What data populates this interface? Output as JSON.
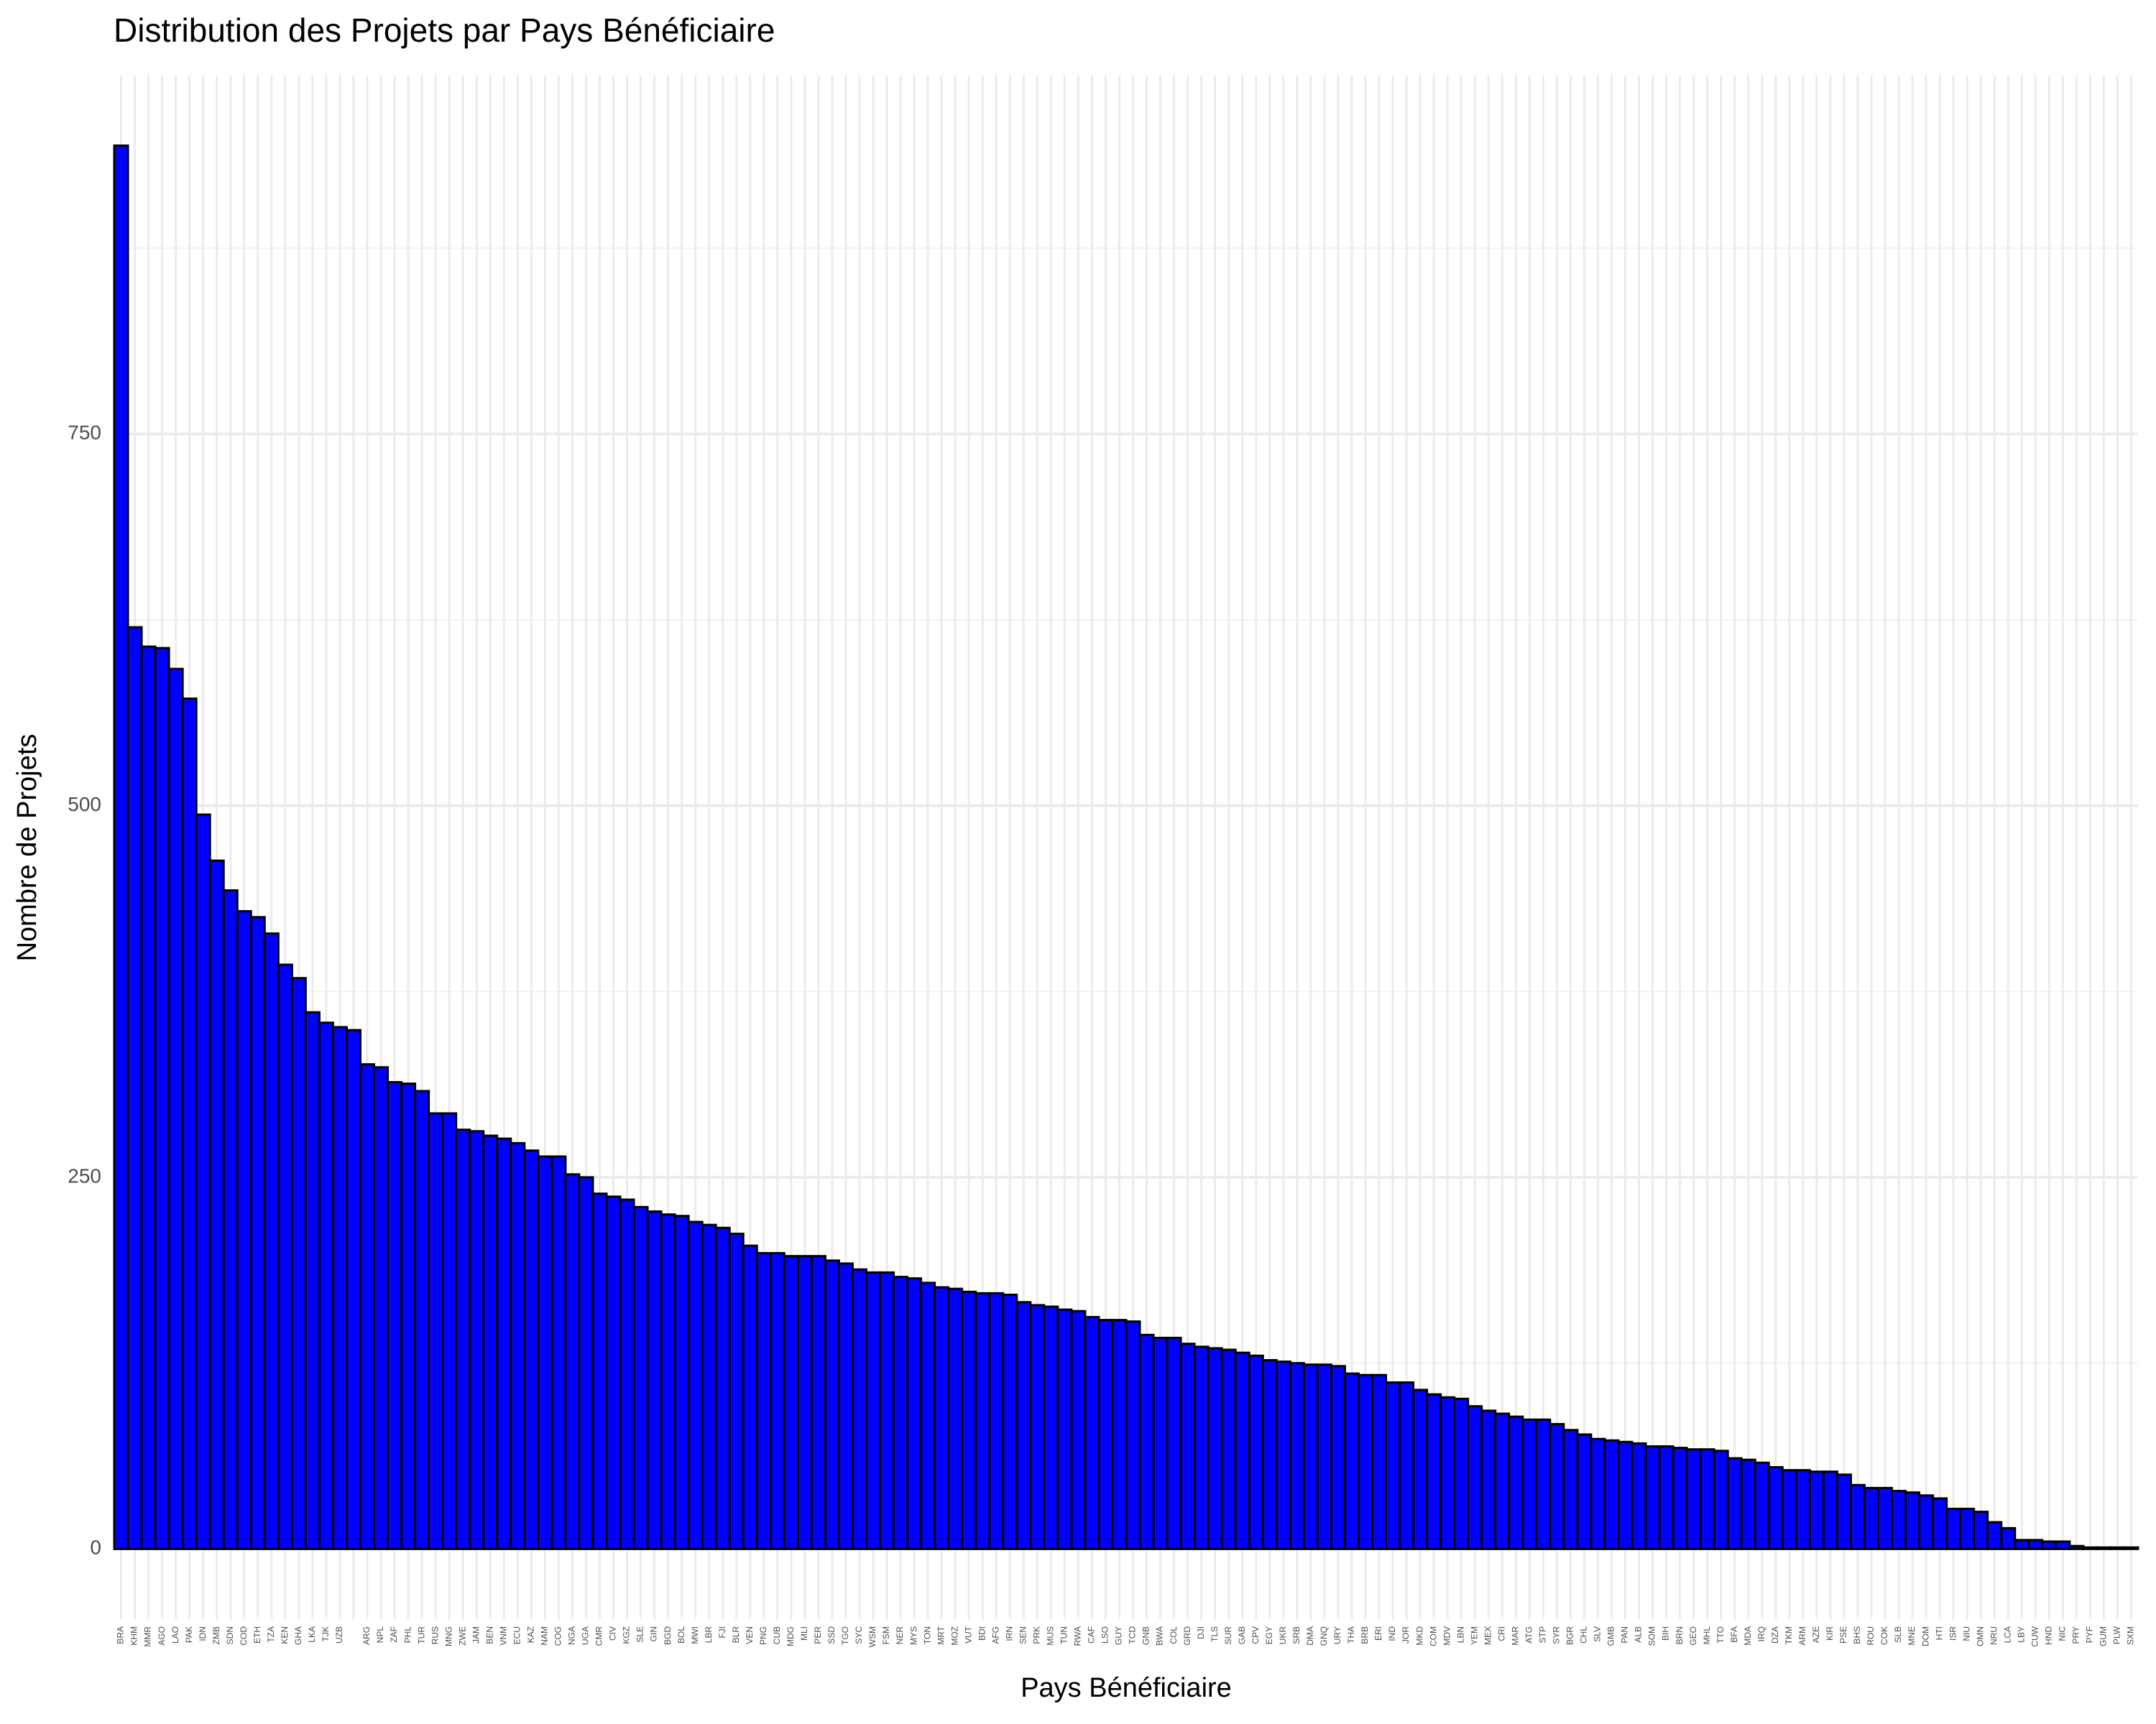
{
  "chart_data": {
    "type": "bar",
    "title": "Distribution des Projets par Pays Bénéficiaire",
    "xlabel": "Pays Bénéficiaire",
    "ylabel": "Nombre de Projets",
    "color": "#0000ff",
    "edgecolor": "#000000",
    "grid": true,
    "categories": [
      "BRA",
      "KHM",
      "MMR",
      "AGO",
      "LAO",
      "PAK",
      "IDN",
      "ZMB",
      "SDN",
      "COD",
      "ETH",
      "TZA",
      "KEN",
      "GHA",
      "LKA",
      "TJK",
      "UZB",
      null,
      "ARG",
      "NPL",
      "ZAF",
      "PHL",
      "TUR",
      "RUS",
      "MNG",
      "ZWE",
      "JAM",
      "BEN",
      "VNM",
      "ECU",
      "KAZ",
      "NAM",
      "COG",
      "NGA",
      "UGA",
      "CMR",
      "CIV",
      "KGZ",
      "SLE",
      "GIN",
      "BGD",
      "BOL",
      "MWI",
      "LBR",
      "FJI",
      "BLR",
      "VEN",
      "PNG",
      "CUB",
      "MDG",
      "MLI",
      "PER",
      "SSD",
      "TGO",
      "SYC",
      "WSM",
      "FSM",
      "NER",
      "MYS",
      "TON",
      "MRT",
      "MOZ",
      "VUT",
      "BDI",
      "AFG",
      "IRN",
      "SEN",
      "PRK",
      "MUS",
      "TUN",
      "RWA",
      "CAF",
      "LSO",
      "GUY",
      "TCD",
      "GNB",
      "BWA",
      "COL",
      "GRD",
      "DJI",
      "TLS",
      "SUR",
      "GAB",
      "CPV",
      "EGY",
      "UKR",
      "SRB",
      "DMA",
      "GNQ",
      "URY",
      "THA",
      "BRB",
      "ERI",
      "IND",
      "JOR",
      "MKD",
      "COM",
      "MDV",
      "LBN",
      "YEM",
      "MEX",
      "CRI",
      "MAR",
      "ATG",
      "STP",
      "SYR",
      "BGR",
      "CHL",
      "SLV",
      "GMB",
      "PAN",
      "ALB",
      "SOM",
      "BIH",
      "BRN",
      "GEO",
      "MHL",
      "TTO",
      "BFA",
      "MDA",
      "IRQ",
      "DZA",
      "TKM",
      "ARM",
      "AZE",
      "KIR",
      "PSE",
      "BHS",
      "ROU",
      "COK",
      "SLB",
      "MNE",
      "DOM",
      "HTI",
      "ISR",
      "NIU",
      "OMN",
      "NRU",
      "LCA",
      "LBY",
      "CUW",
      "HND",
      "NIC",
      "PRY",
      "PYF",
      "GUM",
      "PLW",
      "SXM"
    ],
    "values": [
      944,
      620,
      607,
      606,
      592,
      572,
      494,
      463,
      443,
      429,
      425,
      414,
      393,
      384,
      361,
      354,
      351,
      349,
      326,
      324,
      314,
      313,
      308,
      293,
      293,
      282,
      281,
      278,
      276,
      273,
      268,
      264,
      264,
      252,
      250,
      239,
      237,
      235,
      230,
      227,
      225,
      224,
      220,
      218,
      216,
      212,
      204,
      199,
      199,
      197,
      197,
      197,
      194,
      192,
      188,
      186,
      186,
      183,
      182,
      179,
      176,
      175,
      173,
      172,
      172,
      171,
      166,
      164,
      163,
      161,
      160,
      156,
      154,
      154,
      153,
      144,
      142,
      142,
      138,
      136,
      135,
      134,
      132,
      130,
      127,
      126,
      125,
      124,
      124,
      123,
      118,
      117,
      117,
      112,
      112,
      107,
      104,
      102,
      101,
      96,
      93,
      91,
      89,
      87,
      87,
      84,
      80,
      77,
      74,
      73,
      72,
      71,
      69,
      69,
      68,
      67,
      67,
      66,
      61,
      60,
      58,
      55,
      53,
      53,
      52,
      52,
      50,
      43,
      41,
      41,
      39,
      38,
      36,
      34,
      27,
      27,
      25,
      18,
      14,
      6,
      6,
      5,
      5,
      2,
      1,
      1,
      1,
      1
    ],
    "ylim": [
      -47.2,
      991.2
    ],
    "yticks": [
      0,
      250,
      500,
      750
    ],
    "yminorticks": [
      125,
      375,
      625,
      875
    ]
  }
}
